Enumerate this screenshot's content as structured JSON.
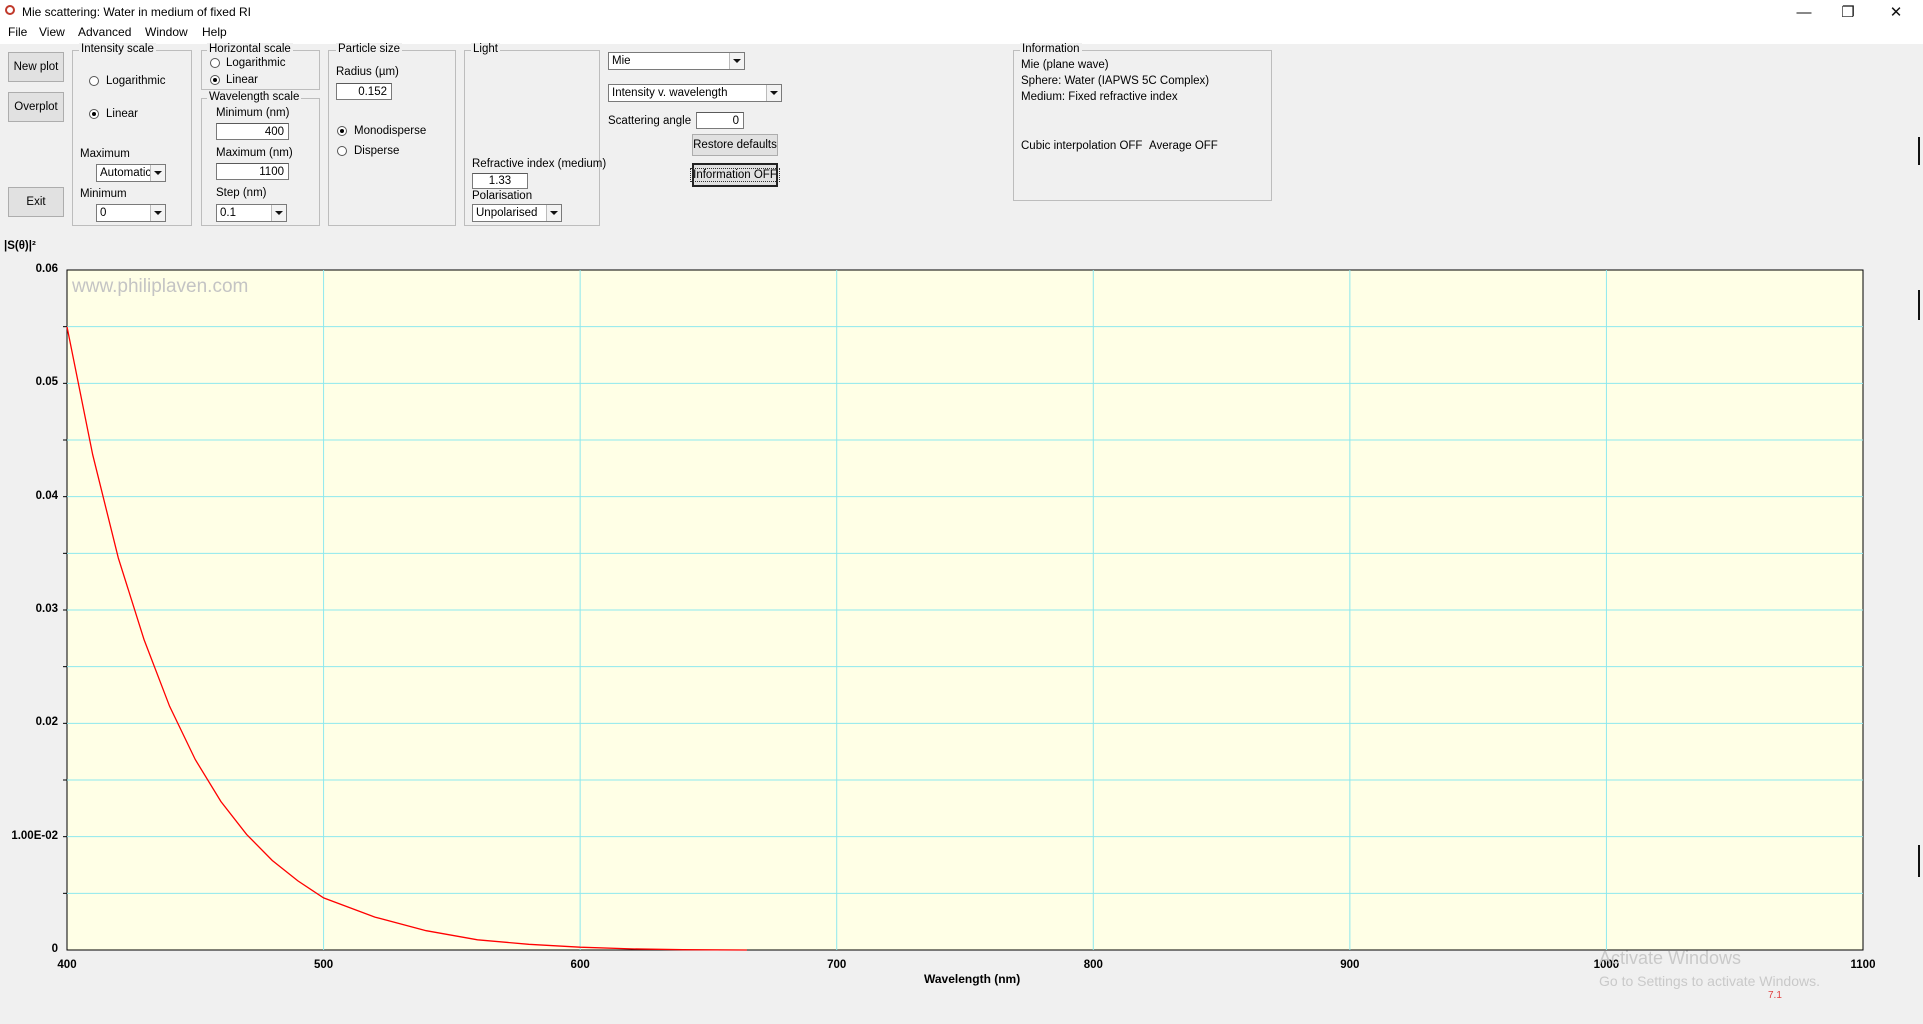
{
  "window": {
    "title": "Mie scattering:  Water in medium of fixed RI",
    "minimize_glyph": "—",
    "restore_glyph": "❐",
    "close_glyph": "✕"
  },
  "menu": [
    "File",
    "View",
    "Advanced",
    "Window",
    "Help"
  ],
  "buttons": {
    "new_plot": "New plot",
    "overplot": "Overplot",
    "exit": "Exit",
    "restore_defaults": "Restore defaults",
    "information_off": "Information OFF"
  },
  "intensity_scale": {
    "title": "Intensity scale",
    "logarithmic": "Logarithmic",
    "linear": "Linear",
    "selected": "Linear",
    "maximum_label": "Maximum",
    "maximum_value": "Automatic",
    "minimum_label": "Minimum",
    "minimum_value": "0"
  },
  "horizontal_scale": {
    "title": "Horizontal scale",
    "logarithmic": "Logarithmic",
    "linear": "Linear",
    "selected": "Linear"
  },
  "wavelength_scale": {
    "title": "Wavelength scale",
    "minimum_label": "Minimum (nm)",
    "minimum_value": "400",
    "maximum_label": "Maximum (nm)",
    "maximum_value": "1100",
    "step_label": "Step (nm)",
    "step_value": "0.1"
  },
  "particle_size": {
    "title": "Particle size",
    "radius_label": "Radius (µm)",
    "radius_value": "0.152",
    "monodisperse": "Monodisperse",
    "disperse": "Disperse",
    "selected": "Monodisperse"
  },
  "light": {
    "title": "Light",
    "refractive_index_label": "Refractive index (medium)",
    "refractive_index_value": "1.33",
    "polarisation_label": "Polarisation",
    "polarisation_value": "Unpolarised"
  },
  "controls": {
    "model_value": "Mie",
    "plot_type_value": "Intensity v. wavelength",
    "scattering_angle_label": "Scattering angle",
    "scattering_angle_value": "0"
  },
  "information": {
    "title": "Information",
    "line1": "Mie (plane wave)",
    "line2": "Sphere: Water (IAPWS 5C Complex)",
    "line3": "Medium: Fixed refractive index",
    "cubic_interpolation": "Cubic interpolation OFF",
    "average": "Average OFF"
  },
  "plot": {
    "watermark": "www.philiplaven.com",
    "activate_line1": "Activate Windows",
    "activate_line2": "Go to Settings to activate Windows.",
    "version": "7.1"
  },
  "colors": {
    "plot_background": "#ffffe6",
    "grid": "#8ee8ee",
    "curve": "#ff0000"
  },
  "chart_data": {
    "type": "line",
    "title": "",
    "ylabel": "|S(θ)|²",
    "xlabel": "Wavelength (nm)",
    "xlim": [
      400,
      1100
    ],
    "ylim": [
      0,
      0.06
    ],
    "x_ticks": [
      "400",
      "500",
      "600",
      "700",
      "800",
      "900",
      "1000",
      "1100"
    ],
    "y_ticks": [
      "0",
      "1.00E-02",
      "0.02",
      "0.03",
      "0.04",
      "0.05",
      "0.06"
    ],
    "grid": true,
    "series": [
      {
        "x": [
          400,
          410,
          420,
          430,
          440,
          450,
          460,
          470,
          480,
          490,
          500,
          520,
          540,
          560,
          580,
          600,
          620,
          640,
          665
        ],
        "y": [
          0.055,
          0.0437,
          0.0346,
          0.0274,
          0.0215,
          0.0168,
          0.0131,
          0.0102,
          0.0079,
          0.0061,
          0.0046,
          0.0029,
          0.0017,
          0.0009,
          0.0005,
          0.00025,
          0.0001,
          3e-05,
          0.0
        ]
      }
    ]
  }
}
